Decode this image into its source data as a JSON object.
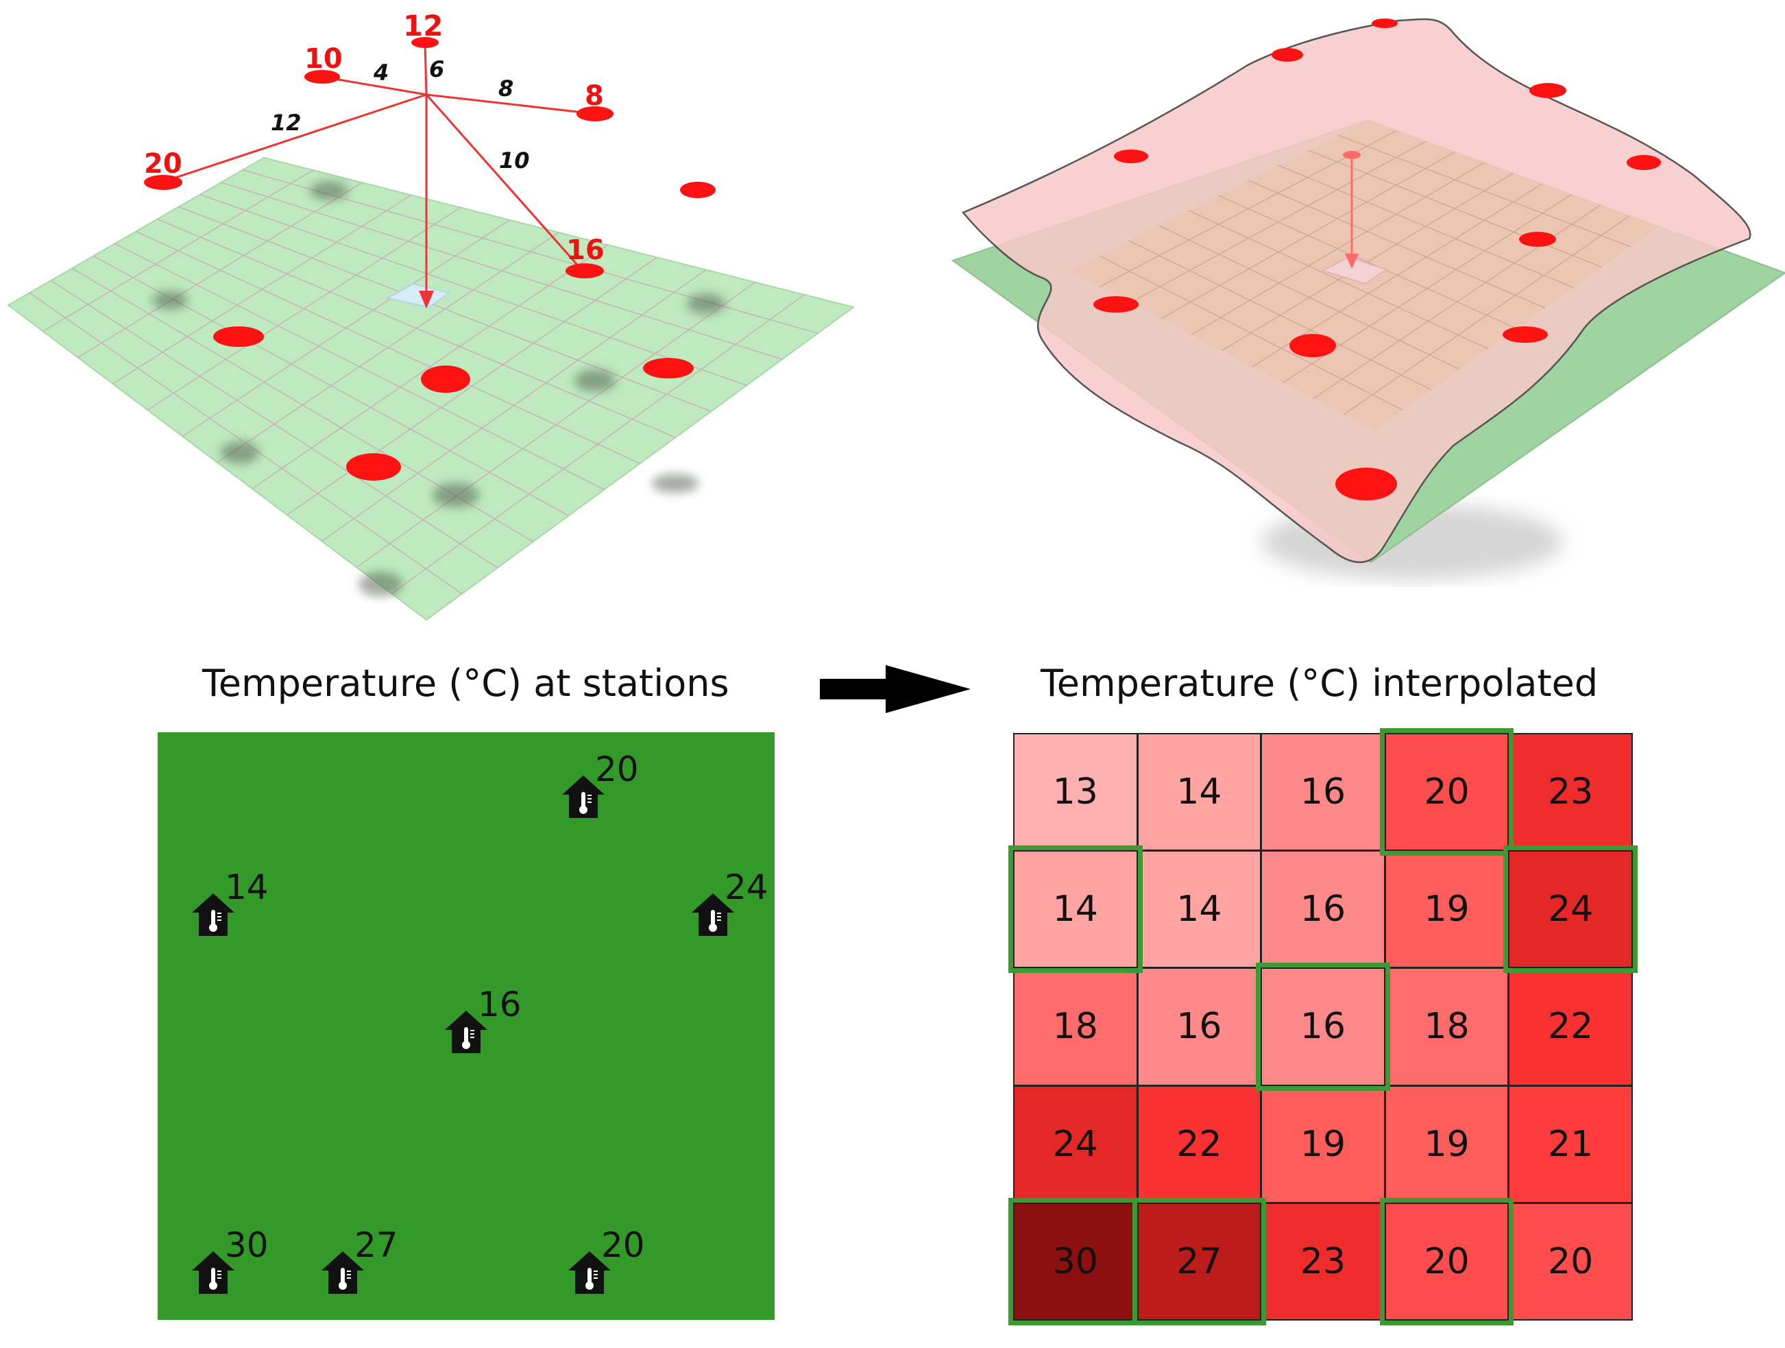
{
  "diagram": {
    "top_left_idw": {
      "neighbors": [
        {
          "value": "12",
          "distance": "6"
        },
        {
          "value": "10",
          "distance": "4"
        },
        {
          "value": "8",
          "distance": "8"
        },
        {
          "value": "20",
          "distance": "12"
        },
        {
          "value": "16",
          "distance": "10"
        }
      ]
    },
    "left_panel": {
      "title": "Temperature (°C) at stations",
      "stations": [
        {
          "value": "20",
          "col": 0.69,
          "row": 0.11
        },
        {
          "value": "14",
          "col": 0.09,
          "row": 0.31
        },
        {
          "value": "24",
          "col": 0.9,
          "row": 0.31
        },
        {
          "value": "16",
          "col": 0.5,
          "row": 0.51
        },
        {
          "value": "30",
          "col": 0.09,
          "row": 0.92
        },
        {
          "value": "27",
          "col": 0.3,
          "row": 0.92
        },
        {
          "value": "20",
          "col": 0.7,
          "row": 0.92
        }
      ]
    },
    "right_panel": {
      "title": "Temperature (°C) interpolated",
      "grid": [
        [
          "13",
          "14",
          "16",
          "20",
          "23"
        ],
        [
          "14",
          "14",
          "16",
          "19",
          "24"
        ],
        [
          "18",
          "16",
          "16",
          "18",
          "22"
        ],
        [
          "24",
          "22",
          "19",
          "19",
          "21"
        ],
        [
          "30",
          "27",
          "23",
          "20",
          "20"
        ]
      ],
      "highlighted_cells": [
        [
          0,
          3
        ],
        [
          1,
          0
        ],
        [
          1,
          4
        ],
        [
          2,
          2
        ],
        [
          4,
          0
        ],
        [
          4,
          1
        ],
        [
          4,
          3
        ]
      ]
    },
    "colors": {
      "station_field": "#339a2a",
      "highlight": "#3d9a33",
      "point": "#ff1a1a",
      "ground": "#bfe9bf",
      "surface": "#f8caca"
    }
  }
}
